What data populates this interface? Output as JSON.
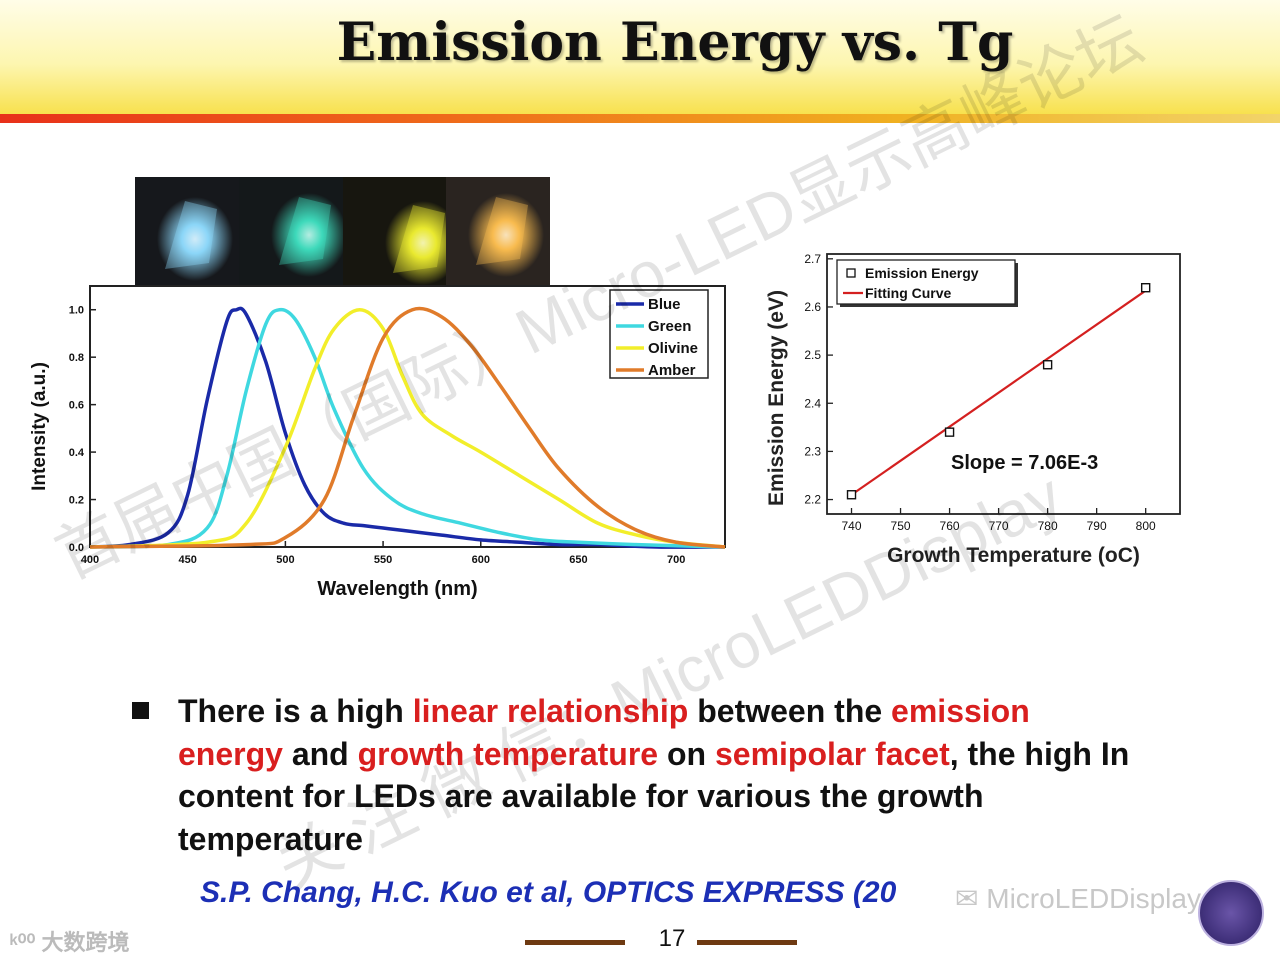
{
  "slide": {
    "title": "Emission Energy vs. Tg",
    "page_number": "17",
    "bullet": {
      "segments": [
        {
          "text": "There is a high ",
          "highlight": false
        },
        {
          "text": "linear relationship",
          "highlight": true
        },
        {
          "text": " between the ",
          "highlight": false
        },
        {
          "text": "emission energy",
          "highlight": true
        },
        {
          "text": " and ",
          "highlight": false
        },
        {
          "text": "growth temperature",
          "highlight": true
        },
        {
          "text": " on ",
          "highlight": false
        },
        {
          "text": "semipolar facet",
          "highlight": true
        },
        {
          "text": ", the high In content for LEDs are available for various the growth temperature",
          "highlight": false
        }
      ]
    },
    "citation": "S.P. Chang, H.C. Kuo et al, OPTICS EXPRESS (20",
    "photo_strip": {
      "led_colors": [
        "#8fdcff",
        "#3fe0c0",
        "#f0f030",
        "#ffc050"
      ]
    },
    "watermarks": {
      "line1": "首届中国（国际）Micro-LED显示高峰论坛",
      "line2": "关 注 微 信：MicroLEDDisplay",
      "logo_left": "大数跨境",
      "account": "MicroLEDDisplay"
    },
    "colors": {
      "highlight": "#d91f1f",
      "citation": "#1c2fb5",
      "fit_line": "#d42020"
    }
  },
  "chart_data": [
    {
      "type": "line",
      "title": "",
      "xlabel": "Wavelength (nm)",
      "ylabel": "Intensity (a.u.)",
      "xlim": [
        400,
        725
      ],
      "ylim": [
        0,
        1.1
      ],
      "xticks": [
        400,
        450,
        500,
        550,
        600,
        650,
        700
      ],
      "yticks": [
        0.0,
        0.2,
        0.4,
        0.6,
        0.8,
        1.0
      ],
      "xtick_labels": [
        "400",
        "450",
        "500",
        "550",
        "600",
        "650",
        "700"
      ],
      "ytick_labels": [
        "0.0",
        "0.2",
        "0.4",
        "0.6",
        "0.8",
        "1.0"
      ],
      "legend_position": "top-right",
      "series": [
        {
          "name": "Blue",
          "color": "#1a2aa8",
          "x": [
            400,
            420,
            440,
            450,
            460,
            470,
            475,
            480,
            490,
            500,
            510,
            520,
            530,
            540,
            550,
            560,
            580,
            600,
            620,
            640,
            660,
            690,
            725
          ],
          "y": [
            0.0,
            0.01,
            0.06,
            0.22,
            0.62,
            0.95,
            1.0,
            0.98,
            0.78,
            0.48,
            0.26,
            0.14,
            0.1,
            0.09,
            0.08,
            0.07,
            0.05,
            0.03,
            0.02,
            0.01,
            0.01,
            0.0,
            0.0
          ]
        },
        {
          "name": "Green",
          "color": "#3fd8e0",
          "x": [
            400,
            440,
            460,
            470,
            480,
            490,
            497,
            505,
            515,
            525,
            540,
            555,
            570,
            590,
            610,
            630,
            650,
            680,
            725
          ],
          "y": [
            0.0,
            0.01,
            0.08,
            0.3,
            0.66,
            0.94,
            1.0,
            0.96,
            0.8,
            0.58,
            0.33,
            0.2,
            0.14,
            0.1,
            0.06,
            0.03,
            0.02,
            0.01,
            0.0
          ]
        },
        {
          "name": "Olivine",
          "color": "#f2ee2a",
          "x": [
            400,
            460,
            480,
            500,
            515,
            525,
            538,
            550,
            560,
            570,
            585,
            600,
            620,
            640,
            660,
            680,
            700,
            725
          ],
          "y": [
            0.0,
            0.02,
            0.1,
            0.42,
            0.75,
            0.92,
            1.0,
            0.92,
            0.72,
            0.56,
            0.47,
            0.4,
            0.3,
            0.2,
            0.1,
            0.05,
            0.02,
            0.0
          ]
        },
        {
          "name": "Amber",
          "color": "#e07b2a",
          "x": [
            400,
            480,
            500,
            520,
            535,
            550,
            565,
            580,
            595,
            610,
            625,
            640,
            660,
            680,
            700,
            725
          ],
          "y": [
            0.0,
            0.01,
            0.04,
            0.2,
            0.55,
            0.88,
            1.0,
            0.97,
            0.85,
            0.68,
            0.5,
            0.33,
            0.17,
            0.07,
            0.02,
            0.0
          ]
        }
      ]
    },
    {
      "type": "scatter",
      "title": "",
      "xlabel": "Growth Temperature (oC)",
      "ylabel": "Emission Energy (eV)",
      "xlim": [
        735,
        807
      ],
      "ylim": [
        2.17,
        2.71
      ],
      "xticks": [
        740,
        750,
        760,
        770,
        780,
        790,
        800
      ],
      "yticks": [
        2.2,
        2.3,
        2.4,
        2.5,
        2.6,
        2.7
      ],
      "xtick_labels": [
        "740",
        "750",
        "760",
        "770",
        "780",
        "790",
        "800"
      ],
      "ytick_labels": [
        "2.2",
        "2.3",
        "2.4",
        "2.5",
        "2.6",
        "2.7"
      ],
      "legend_position": "top-left",
      "annotation": "Slope = 7.06E-3",
      "series": [
        {
          "name": "Emission Energy",
          "marker": "open-square",
          "x": [
            740,
            760,
            780,
            800
          ],
          "y": [
            2.21,
            2.34,
            2.48,
            2.64
          ]
        },
        {
          "name": "Fitting Curve",
          "line": true,
          "color": "#d42020",
          "x": [
            740,
            800
          ],
          "y": [
            2.21,
            2.634
          ]
        }
      ]
    }
  ]
}
